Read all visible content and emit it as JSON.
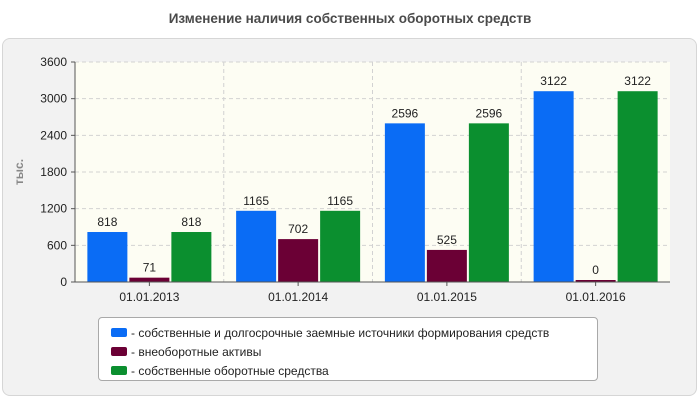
{
  "colors": {
    "series_1": "#0a6cf5",
    "series_2": "#6b0035",
    "series_3": "#0b8f2f"
  },
  "chart_data": {
    "type": "bar",
    "title": "Изменение наличия собственных оборотных средств",
    "ylabel": "тыс.",
    "xlabel": "",
    "ylim": [
      0,
      3600
    ],
    "yticks": [
      "0",
      "600",
      "1200",
      "1800",
      "2400",
      "3000",
      "3600"
    ],
    "grid": true,
    "legend_position": "bottom",
    "categories": [
      "01.01.2013",
      "01.01.2014",
      "01.01.2015",
      "01.01.2016"
    ],
    "series": [
      {
        "name": "- собственные и долгосрочные заемные источники формирования средств",
        "values": [
          818,
          1165,
          2596,
          3122
        ]
      },
      {
        "name": "- внеоборотные активы",
        "values": [
          71,
          702,
          525,
          0
        ]
      },
      {
        "name": "- собственные оборотные средства",
        "values": [
          818,
          1165,
          2596,
          3122
        ]
      }
    ]
  }
}
